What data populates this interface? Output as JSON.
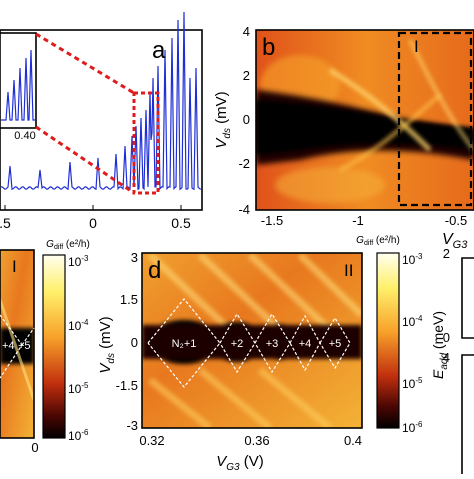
{
  "panel_a": {
    "letter": "a",
    "x_ticks": [
      ".5",
      "0",
      "0.5"
    ],
    "inset_tick": "0.40",
    "series_color": "#1f2fd6",
    "zoom_box_color": "#e01b1b"
  },
  "panel_b": {
    "letter": "b",
    "region_label": "I",
    "y_label_main": "V",
    "y_label_sub": "ds",
    "y_label_unit": " (mV)",
    "y_ticks": [
      "4",
      "2",
      "0",
      "-2",
      "-4"
    ],
    "x_ticks": [
      "-1.5",
      "-1",
      "-0.5"
    ],
    "x_label_main": "V",
    "x_label_sub": "G3",
    "colorbar_label_main": "G",
    "colorbar_label_sub": "diff",
    "colorbar_label_unit": " (e²/h)"
  },
  "panel_c": {
    "region_label": "I",
    "diamond_labels": [
      "+4",
      "+5"
    ],
    "x_tick": "0",
    "colorbar_label_main": "G",
    "colorbar_label_sub": "diff",
    "colorbar_label_unit": " (e²/h)",
    "colorbar_ticks": [
      "10",
      "10",
      "10",
      "10"
    ],
    "colorbar_exps": [
      "-3",
      "-4",
      "-5",
      "-6"
    ]
  },
  "panel_d": {
    "letter": "d",
    "region_label": "II",
    "diamond_labels": [
      "N₂+1",
      "+2",
      "+3",
      "+4",
      "+5"
    ],
    "y_label_main": "V",
    "y_label_sub": "ds",
    "y_label_unit": " (mV)",
    "y_ticks": [
      "3",
      "1.5",
      "0",
      "-1.5",
      "-3"
    ],
    "x_ticks": [
      "0.32",
      "0.36",
      "0.4"
    ],
    "x_label_main": "V",
    "x_label_sub": "G3",
    "x_label_unit": " (V)",
    "colorbar_ticks": [
      "10",
      "10",
      "10",
      "10"
    ],
    "colorbar_exps": [
      "-3",
      "-4",
      "-5",
      "-6"
    ]
  },
  "panel_e": {
    "y_label_main": "E",
    "y_label_sub": "add",
    "y_label_unit": " (meV)"
  }
}
